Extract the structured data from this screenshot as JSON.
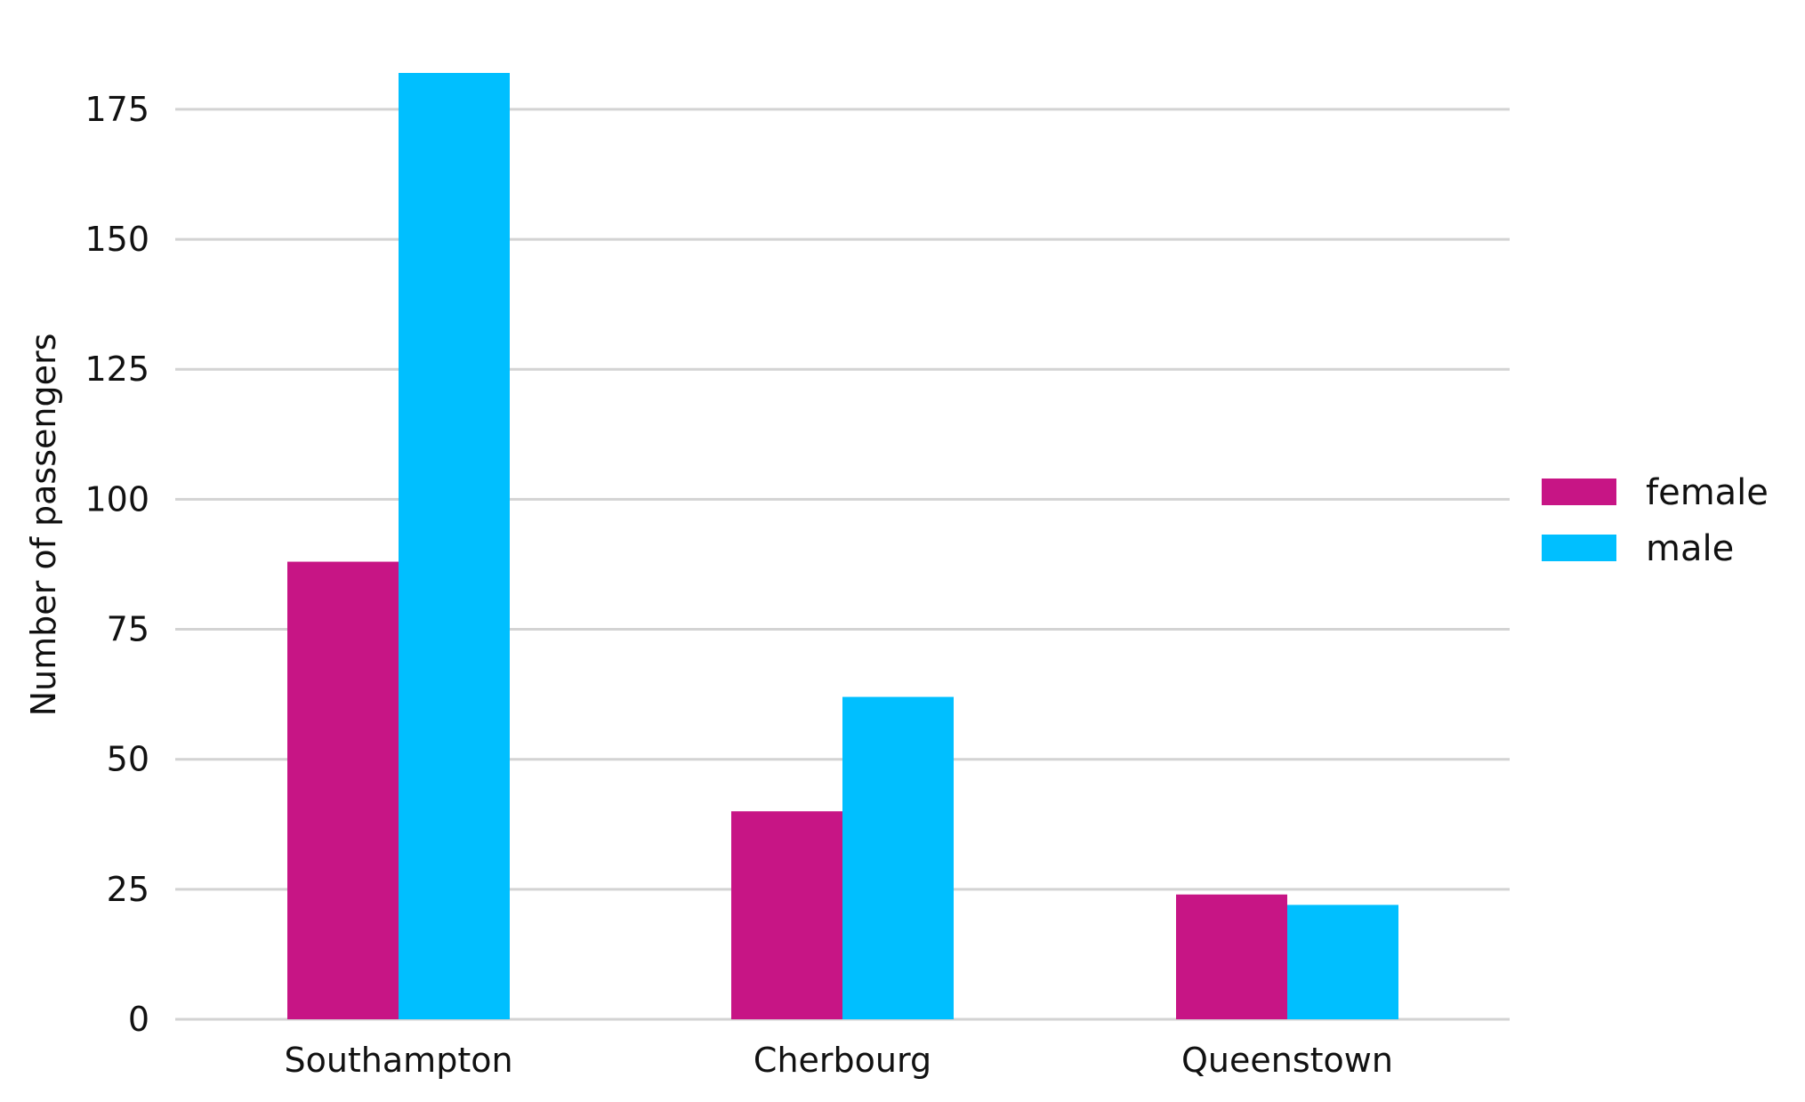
{
  "chart_data": {
    "type": "bar",
    "title": "",
    "xlabel": "",
    "ylabel": "Number of passengers",
    "categories": [
      "Southampton",
      "Cherbourg",
      "Queenstown"
    ],
    "series": [
      {
        "name": "female",
        "color": "#c71585",
        "values": [
          88,
          40,
          24
        ]
      },
      {
        "name": "male",
        "color": "#00bfff",
        "values": [
          182,
          62,
          22
        ]
      }
    ],
    "ylim": [
      0,
      182
    ],
    "yticks": [
      0,
      25,
      50,
      75,
      100,
      125,
      150,
      175
    ],
    "grid": true,
    "gridline_color": "#d3d3d3",
    "legend_position": "right"
  }
}
